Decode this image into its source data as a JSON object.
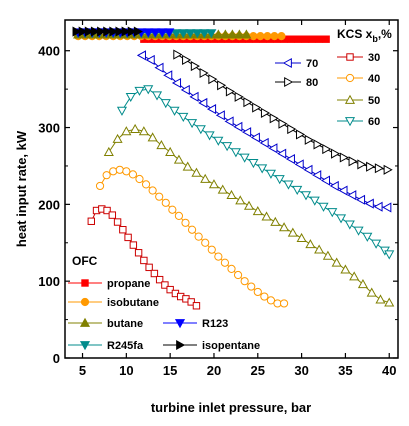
{
  "chart_data": {
    "type": "scatter",
    "xlabel": "turbine inlet pressure, bar",
    "ylabel": "heat input rate, kW",
    "xlim": [
      3,
      41
    ],
    "ylim": [
      0,
      440
    ],
    "xticks": [
      5,
      10,
      15,
      20,
      25,
      30,
      35,
      40
    ],
    "yticks": [
      0,
      100,
      200,
      300,
      400
    ],
    "legend_kcs_title": "KCS x_b,%",
    "legend_kcs_title_parts": {
      "main": "KCS x",
      "sub": "b",
      "suffix": ",%"
    },
    "legend_ofc_title": "OFC",
    "series": [
      {
        "name": "propane",
        "group": "OFC",
        "color": "#ff0000",
        "marker": "square-filled",
        "x": [
          12.0,
          12.8,
          13.6,
          14.4,
          15.2,
          16.0,
          16.8,
          17.6,
          18.4,
          19.2,
          20.0,
          20.8,
          21.6,
          22.4,
          23.2,
          24.0,
          24.8,
          25.6,
          26.4,
          27.2,
          28.0,
          28.8,
          29.6,
          30.4,
          31.2,
          32.0,
          32.8
        ],
        "y": [
          415,
          415,
          415,
          415,
          415,
          415,
          415,
          415,
          415,
          415,
          415,
          415,
          415,
          415,
          415,
          415,
          415,
          415,
          415,
          415,
          415,
          415,
          415,
          415,
          415,
          415,
          415
        ]
      },
      {
        "name": "isobutane",
        "group": "OFC",
        "color": "#ff9900",
        "marker": "circle-filled",
        "x": [
          4.5,
          5.3,
          6.1,
          6.9,
          7.7,
          8.5,
          9.3,
          10.1,
          10.9,
          11.7,
          12.5,
          13.3,
          14.1,
          14.9,
          15.7,
          16.5,
          17.3,
          18.1,
          18.9,
          19.7,
          20.5,
          21.3,
          22.1,
          22.9,
          23.7,
          24.5,
          25.3,
          26.1,
          26.9,
          27.7
        ],
        "y": [
          419,
          419,
          419,
          419,
          419,
          419,
          419,
          419,
          419,
          419,
          419,
          419,
          419,
          419,
          419,
          419,
          419,
          419,
          419,
          419,
          419,
          419,
          419,
          419,
          419,
          419,
          419,
          419,
          419,
          419
        ]
      },
      {
        "name": "butane",
        "group": "OFC",
        "color": "#808000",
        "marker": "triangle-up-filled",
        "x": [
          4.5,
          5.3,
          6.1,
          6.9,
          7.7,
          8.5,
          9.3,
          10.1,
          10.9,
          11.7,
          12.5,
          13.3,
          14.1,
          14.9,
          15.7,
          16.5,
          17.3,
          18.1,
          18.9,
          19.7,
          20.5,
          21.3,
          22.1,
          22.9,
          23.7
        ],
        "y": [
          421,
          421,
          421,
          421,
          421,
          421,
          421,
          421,
          421,
          421,
          421,
          421,
          421,
          421,
          421,
          421,
          421,
          421,
          421,
          421,
          421,
          421,
          421,
          421,
          421
        ]
      },
      {
        "name": "R245fa",
        "group": "OFC",
        "color": "#008b8b",
        "marker": "triangle-down-filled",
        "x": [
          4.5,
          5.3,
          6.1,
          6.9,
          7.7,
          8.5,
          9.3,
          10.1,
          10.9,
          11.7,
          12.5,
          13.3,
          14.1,
          14.9,
          15.7,
          16.5,
          17.3,
          18.1,
          18.9,
          19.7
        ],
        "y": [
          423,
          423,
          423,
          423,
          423,
          423,
          423,
          423,
          423,
          423,
          423,
          423,
          423,
          423,
          423,
          423,
          423,
          423,
          423,
          423
        ]
      },
      {
        "name": "R123",
        "group": "OFC",
        "color": "#0000ff",
        "marker": "triangle-down-filled",
        "x": [
          4.5,
          5.3,
          6.1,
          6.9,
          7.7,
          8.5,
          9.3,
          10.1,
          10.9,
          11.7,
          12.5,
          13.3,
          14.1,
          14.9
        ],
        "y": [
          424,
          424,
          424,
          424,
          424,
          424,
          424,
          424,
          424,
          424,
          424,
          424,
          424,
          424
        ]
      },
      {
        "name": "isopentane",
        "group": "OFC",
        "color": "#000000",
        "marker": "triangle-right-filled",
        "x": [
          4.3,
          5.0,
          5.7,
          6.4,
          7.1,
          7.8,
          8.5,
          9.2,
          9.9,
          10.6,
          11.3
        ],
        "y": [
          425,
          425,
          425,
          425,
          425,
          425,
          425,
          425,
          425,
          425,
          425
        ]
      },
      {
        "name": "30",
        "group": "KCS",
        "color": "#cc0000",
        "marker": "square-open",
        "x": [
          6.0,
          6.6,
          7.2,
          7.8,
          8.4,
          9.0,
          9.6,
          10.2,
          10.8,
          11.4,
          12.0,
          12.6,
          13.2,
          13.8,
          14.4,
          15.0,
          15.6,
          16.2,
          16.8,
          17.4,
          18.0
        ],
        "y": [
          178,
          192,
          194,
          192,
          186,
          177,
          167,
          157,
          147,
          137,
          127,
          118,
          110,
          102,
          95,
          89,
          84,
          80,
          77,
          73,
          68
        ]
      },
      {
        "name": "40",
        "group": "KCS",
        "color": "#ff9900",
        "marker": "circle-open",
        "x": [
          7.0,
          7.75,
          8.5,
          9.25,
          10.0,
          10.75,
          11.5,
          12.25,
          13.0,
          13.75,
          14.5,
          15.25,
          16.0,
          16.75,
          17.5,
          18.25,
          19.0,
          19.75,
          20.5,
          21.25,
          22.0,
          22.75,
          23.5,
          24.25,
          25.0,
          25.75,
          26.5,
          27.25,
          28.0
        ],
        "y": [
          224,
          238,
          243,
          245,
          243,
          239,
          233,
          226,
          218,
          210,
          202,
          193,
          185,
          176,
          167,
          158,
          150,
          141,
          132,
          124,
          116,
          108,
          100,
          93,
          86,
          80,
          75,
          71,
          71
        ]
      },
      {
        "name": "50",
        "group": "KCS",
        "color": "#808000",
        "marker": "triangle-up-open",
        "x": [
          8.0,
          9.0,
          10.0,
          11.0,
          12.0,
          13.0,
          14.0,
          15.0,
          16.0,
          17.0,
          18.0,
          19.0,
          20.0,
          21.0,
          22.0,
          23.0,
          24.0,
          25.0,
          26.0,
          27.0,
          28.0,
          29.0,
          30.0,
          31.0,
          32.0,
          33.0,
          34.0,
          35.0,
          36.0,
          37.0,
          38.0,
          39.0,
          40.0
        ],
        "y": [
          268,
          285,
          295,
          298,
          295,
          287,
          277,
          268,
          258,
          249,
          241,
          233,
          226,
          219,
          212,
          205,
          198,
          191,
          184,
          177,
          170,
          163,
          156,
          148,
          141,
          133,
          124,
          115,
          106,
          96,
          85,
          76,
          72
        ]
      },
      {
        "name": "60",
        "group": "KCS",
        "color": "#008b8b",
        "marker": "triangle-down-open",
        "x": [
          9.5,
          10.5,
          11.5,
          12.5,
          13.5,
          14.5,
          15.5,
          16.5,
          17.5,
          18.5,
          19.5,
          20.5,
          21.5,
          22.5,
          23.5,
          24.5,
          25.5,
          26.5,
          27.5,
          28.5,
          29.5,
          30.5,
          31.5,
          32.5,
          33.5,
          34.5,
          35.5,
          36.5,
          37.5,
          38.5,
          39.5,
          40.0
        ],
        "y": [
          322,
          340,
          348,
          350,
          342,
          332,
          322,
          314,
          306,
          298,
          290,
          283,
          276,
          268,
          261,
          254,
          247,
          240,
          233,
          226,
          219,
          212,
          205,
          197,
          190,
          182,
          174,
          166,
          158,
          149,
          140,
          135
        ]
      },
      {
        "name": "70",
        "group": "KCS",
        "color": "#0000cc",
        "marker": "triangle-left-open",
        "x": [
          11.8,
          12.8,
          13.8,
          14.8,
          15.8,
          16.8,
          17.8,
          18.8,
          19.8,
          20.8,
          21.8,
          22.8,
          23.8,
          24.8,
          25.8,
          26.8,
          27.8,
          28.8,
          29.8,
          30.8,
          31.8,
          32.8,
          33.8,
          34.8,
          35.8,
          36.8,
          37.8,
          38.8,
          39.8
        ],
        "y": [
          394,
          388,
          378,
          368,
          358,
          349,
          340,
          332,
          324,
          316,
          308,
          301,
          294,
          287,
          280,
          273,
          266,
          259,
          252,
          245,
          238,
          231,
          224,
          218,
          212,
          206,
          201,
          197,
          196
        ]
      },
      {
        "name": "80",
        "group": "KCS",
        "color": "#000000",
        "marker": "triangle-right-open",
        "x": [
          15.8,
          16.8,
          17.8,
          18.8,
          19.8,
          20.8,
          21.8,
          22.8,
          23.8,
          24.8,
          25.8,
          26.8,
          27.8,
          28.8,
          29.8,
          30.8,
          31.8,
          32.8,
          33.8,
          34.8,
          35.8,
          36.8,
          37.8,
          38.8,
          39.8
        ],
        "y": [
          395,
          388,
          380,
          371,
          363,
          355,
          347,
          340,
          333,
          326,
          319,
          312,
          305,
          298,
          291,
          284,
          278,
          272,
          266,
          261,
          256,
          252,
          249,
          247,
          245
        ]
      }
    ],
    "legend_kcs_order": [
      "70",
      "80",
      "30",
      "40",
      "50",
      "60"
    ],
    "legend_ofc_order": [
      "propane",
      "isobutane",
      "butane",
      "R123",
      "R245fa",
      "isopentane"
    ]
  }
}
